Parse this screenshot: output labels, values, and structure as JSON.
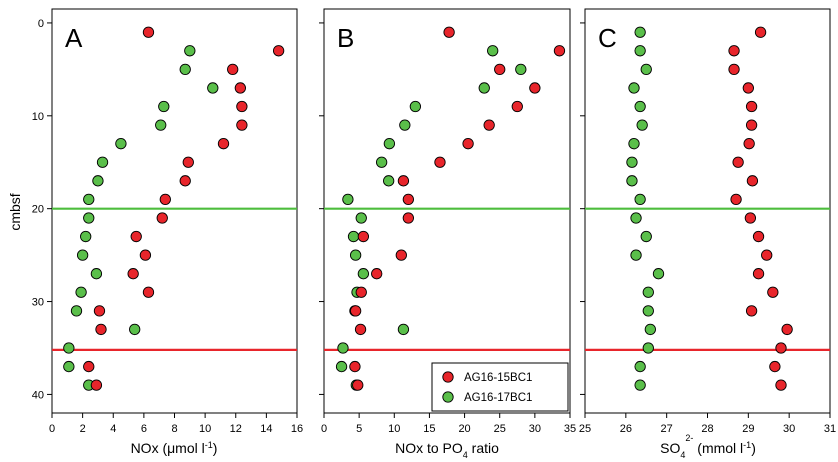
{
  "chart_data": {
    "type": "scatter",
    "y_axis": {
      "label": "cmbsf",
      "range": [
        42,
        -1.5
      ],
      "ticks": [
        0,
        10,
        20,
        30,
        40
      ],
      "tick_labels": [
        "0",
        "10",
        "20",
        "30",
        "40"
      ]
    },
    "reference_lines": [
      {
        "y": 20,
        "color": "#4dbd3d"
      },
      {
        "y": 35.2,
        "color": "#e8252b"
      }
    ],
    "legend": {
      "placement": "bottom-right of panel B",
      "entries": [
        {
          "label": "AG16-15BC1",
          "color": "#e8252b"
        },
        {
          "label": "AG16-17BC1",
          "color": "#5abf4a"
        }
      ]
    },
    "panels": [
      {
        "letter": "A",
        "xlabel_main": "NOx (μmol l",
        "xlabel_sup": "-1",
        "xlabel_end": ")",
        "xlim": [
          0,
          16
        ],
        "xticks": [
          0,
          2,
          4,
          6,
          8,
          10,
          12,
          14,
          16
        ],
        "xtick_labels": [
          "0",
          "2",
          "4",
          "6",
          "8",
          "10",
          "12",
          "14",
          "16"
        ],
        "series": [
          {
            "name": "AG16-15BC1",
            "points": [
              [
                6.3,
                1
              ],
              [
                14.8,
                3
              ],
              [
                11.8,
                5
              ],
              [
                12.3,
                7
              ],
              [
                12.4,
                9
              ],
              [
                12.4,
                11
              ],
              [
                11.2,
                13
              ],
              [
                8.9,
                15
              ],
              [
                8.7,
                17
              ],
              [
                7.4,
                19
              ],
              [
                7.2,
                21
              ],
              [
                5.5,
                23
              ],
              [
                6.1,
                25
              ],
              [
                5.3,
                27
              ],
              [
                6.3,
                29
              ],
              [
                3.1,
                31
              ],
              [
                3.2,
                33
              ],
              [
                2.4,
                37
              ],
              [
                2.9,
                39
              ]
            ]
          },
          {
            "name": "AG16-17BC1",
            "points": [
              [
                9.0,
                3
              ],
              [
                8.7,
                5
              ],
              [
                10.5,
                7
              ],
              [
                7.3,
                9
              ],
              [
                7.1,
                11
              ],
              [
                4.5,
                13
              ],
              [
                3.3,
                15
              ],
              [
                3.0,
                17
              ],
              [
                2.4,
                19
              ],
              [
                2.4,
                21
              ],
              [
                2.2,
                23
              ],
              [
                2.0,
                25
              ],
              [
                2.9,
                27
              ],
              [
                1.9,
                29
              ],
              [
                1.6,
                31
              ],
              [
                5.4,
                33
              ],
              [
                1.1,
                35
              ],
              [
                1.1,
                37
              ],
              [
                2.4,
                39
              ]
            ]
          }
        ]
      },
      {
        "letter": "B",
        "xlabel_main": "NOx to PO",
        "xlabel_sub": "4",
        "xlabel_end": " ratio",
        "xlim": [
          0,
          35
        ],
        "xticks": [
          0,
          5,
          10,
          15,
          20,
          25,
          30,
          35
        ],
        "xtick_labels": [
          "0",
          "5",
          "10",
          "15",
          "20",
          "25",
          "30",
          "35"
        ],
        "series": [
          {
            "name": "AG16-15BC1",
            "points": [
              [
                17.8,
                1
              ],
              [
                33.5,
                3
              ],
              [
                25.0,
                5
              ],
              [
                30.0,
                7
              ],
              [
                27.5,
                9
              ],
              [
                23.5,
                11
              ],
              [
                20.5,
                13
              ],
              [
                16.5,
                15
              ],
              [
                11.3,
                17
              ],
              [
                12.0,
                19
              ],
              [
                12.0,
                21
              ],
              [
                5.6,
                23
              ],
              [
                11.0,
                25
              ],
              [
                7.5,
                27
              ],
              [
                5.3,
                29
              ],
              [
                4.5,
                31
              ],
              [
                5.2,
                33
              ],
              [
                4.4,
                37
              ],
              [
                4.8,
                39
              ]
            ]
          },
          {
            "name": "AG16-17BC1",
            "points": [
              [
                24.0,
                3
              ],
              [
                28.0,
                5
              ],
              [
                22.8,
                7
              ],
              [
                13.0,
                9
              ],
              [
                11.5,
                11
              ],
              [
                9.3,
                13
              ],
              [
                8.2,
                15
              ],
              [
                9.2,
                17
              ],
              [
                3.4,
                19
              ],
              [
                5.3,
                21
              ],
              [
                4.2,
                23
              ],
              [
                4.5,
                25
              ],
              [
                5.6,
                27
              ],
              [
                4.7,
                29
              ],
              [
                4.4,
                31
              ],
              [
                11.3,
                33
              ],
              [
                2.7,
                35
              ],
              [
                2.5,
                37
              ],
              [
                4.6,
                39
              ]
            ]
          }
        ]
      },
      {
        "letter": "C",
        "xlabel_main": "SO",
        "xlabel_sub": "4",
        "xlabel_sup": "2-",
        "xlabel_end": " (mmol l",
        "xlabel_sup2": "-1",
        "xlabel_end2": ")",
        "xlim": [
          25,
          31
        ],
        "xticks": [
          25,
          26,
          27,
          28,
          29,
          30,
          31
        ],
        "xtick_labels": [
          "25",
          "26",
          "27",
          "28",
          "29",
          "30",
          "31"
        ],
        "series": [
          {
            "name": "AG16-15BC1",
            "points": [
              [
                29.3,
                1
              ],
              [
                28.65,
                3
              ],
              [
                28.65,
                5
              ],
              [
                29.0,
                7
              ],
              [
                29.08,
                9
              ],
              [
                29.08,
                11
              ],
              [
                29.02,
                13
              ],
              [
                28.75,
                15
              ],
              [
                29.1,
                17
              ],
              [
                28.7,
                19
              ],
              [
                29.05,
                21
              ],
              [
                29.25,
                23
              ],
              [
                29.45,
                25
              ],
              [
                29.25,
                27
              ],
              [
                29.6,
                29
              ],
              [
                29.08,
                31
              ],
              [
                29.95,
                33
              ],
              [
                29.8,
                35
              ],
              [
                29.65,
                37
              ],
              [
                29.8,
                39
              ]
            ]
          },
          {
            "name": "AG16-17BC1",
            "points": [
              [
                26.35,
                1
              ],
              [
                26.35,
                3
              ],
              [
                26.5,
                5
              ],
              [
                26.2,
                7
              ],
              [
                26.35,
                9
              ],
              [
                26.4,
                11
              ],
              [
                26.2,
                13
              ],
              [
                26.15,
                15
              ],
              [
                26.15,
                17
              ],
              [
                26.35,
                19
              ],
              [
                26.25,
                21
              ],
              [
                26.5,
                23
              ],
              [
                26.25,
                25
              ],
              [
                26.8,
                27
              ],
              [
                26.55,
                29
              ],
              [
                26.55,
                31
              ],
              [
                26.6,
                33
              ],
              [
                26.55,
                35
              ],
              [
                26.35,
                37
              ],
              [
                26.35,
                39
              ]
            ]
          }
        ]
      }
    ]
  }
}
